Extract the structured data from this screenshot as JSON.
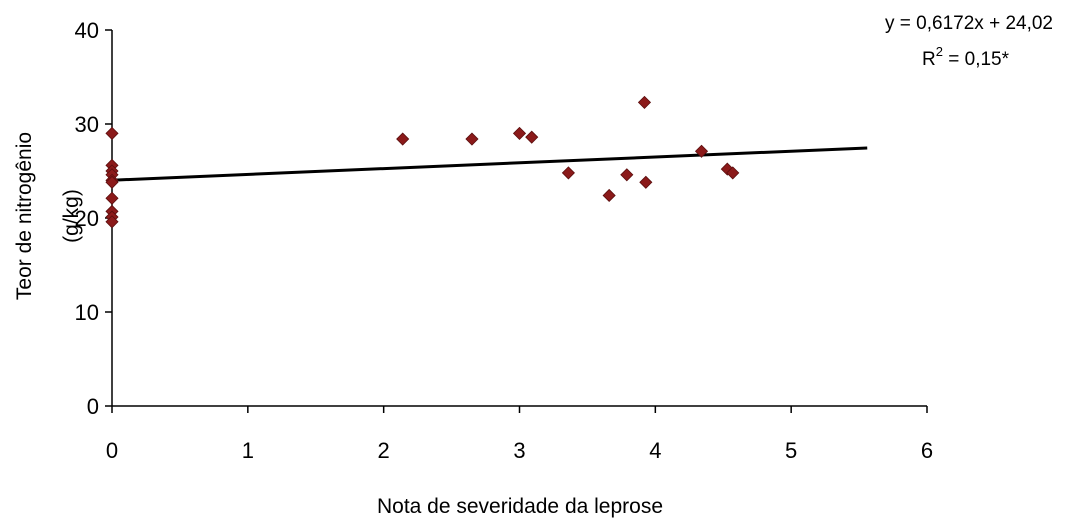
{
  "chart_data": {
    "type": "scatter",
    "xlabel": "Nota de severidade da leprose",
    "ylabel_line1": "Teor de nitrogênio",
    "ylabel_line2": "(g/kg)",
    "xlim": [
      0,
      6
    ],
    "ylim": [
      0,
      40
    ],
    "xticks": [
      "0",
      "1",
      "2",
      "3",
      "4",
      "5",
      "6"
    ],
    "yticks": [
      "0",
      "10",
      "20",
      "30",
      "40"
    ],
    "grid": false,
    "legend": "none",
    "marker_color": "#8B1A1A",
    "trendline_color": "#000000",
    "points": [
      {
        "x": 0,
        "y": 29.0
      },
      {
        "x": 0,
        "y": 25.6
      },
      {
        "x": 0,
        "y": 25.0
      },
      {
        "x": 0,
        "y": 24.6
      },
      {
        "x": 0,
        "y": 24.0
      },
      {
        "x": 0,
        "y": 23.8
      },
      {
        "x": 0,
        "y": 22.1
      },
      {
        "x": 0,
        "y": 20.7
      },
      {
        "x": 0,
        "y": 20.1
      },
      {
        "x": 0,
        "y": 19.6
      },
      {
        "x": 2.14,
        "y": 28.4
      },
      {
        "x": 2.65,
        "y": 28.4
      },
      {
        "x": 3.0,
        "y": 29.0
      },
      {
        "x": 3.09,
        "y": 28.6
      },
      {
        "x": 3.36,
        "y": 24.8
      },
      {
        "x": 3.66,
        "y": 22.4
      },
      {
        "x": 3.79,
        "y": 24.6
      },
      {
        "x": 3.92,
        "y": 32.3
      },
      {
        "x": 3.93,
        "y": 23.8
      },
      {
        "x": 4.34,
        "y": 27.1
      },
      {
        "x": 4.53,
        "y": 25.2
      },
      {
        "x": 4.57,
        "y": 24.8
      }
    ],
    "trendline": {
      "slope": 0.6172,
      "intercept": 24.02,
      "x_range": [
        0,
        5.56
      ],
      "equation": "y = 0,6172x + 24,02",
      "r2_prefix": "R",
      "r2_exp": "2",
      "r2_suffix": " = 0,15*"
    }
  }
}
